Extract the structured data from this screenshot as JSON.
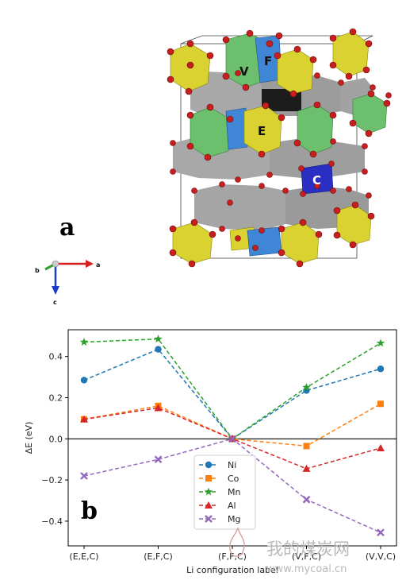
{
  "panel_a": {
    "letter": "a",
    "site_labels": {
      "V": "V",
      "F": "F",
      "E": "E",
      "C": "C"
    },
    "axes_labels": {
      "a": "a",
      "b": "b",
      "c": "c"
    },
    "colors": {
      "green": "#6cbf6c",
      "yellow": "#d9d230",
      "blue": "#3f86d6",
      "darkblue": "#2a2fc4",
      "grey": "#9a9a9a",
      "black": "#1c1c1c",
      "oxygen": "#c81e1e"
    }
  },
  "panel_b": {
    "letter": "b"
  },
  "watermark": {
    "text_cn": "我的煤炭网",
    "url": "www.mycoal.cn"
  },
  "chart_data": {
    "type": "line",
    "xlabel": "Li configuration label",
    "ylabel": "ΔE (eV)",
    "categories": [
      "(E,E,C)",
      "(E,F,C)",
      "(F,F,C)",
      "(V,F,C)",
      "(V,V,C)"
    ],
    "ylim": [
      -0.52,
      0.53
    ],
    "yticks": [
      "0.4",
      "0.2",
      "0.0",
      "−0.2",
      "−0.4"
    ],
    "ytick_values": [
      0.4,
      0.2,
      0.0,
      -0.2,
      -0.4
    ],
    "grid": false,
    "zero_line": true,
    "legend_position": "lower-center",
    "series": [
      {
        "name": "Ni",
        "color": "#1f77b4",
        "marker": "circle",
        "values": [
          0.285,
          0.435,
          0.0,
          0.235,
          0.34
        ]
      },
      {
        "name": "Co",
        "color": "#ff7f0e",
        "marker": "square",
        "values": [
          0.095,
          0.16,
          0.0,
          -0.035,
          0.17
        ]
      },
      {
        "name": "Mn",
        "color": "#2ca02c",
        "marker": "star",
        "values": [
          0.47,
          0.485,
          0.0,
          0.25,
          0.465
        ]
      },
      {
        "name": "Al",
        "color": "#d62728",
        "marker": "triangle",
        "values": [
          0.095,
          0.15,
          0.0,
          -0.145,
          -0.045
        ]
      },
      {
        "name": "Mg",
        "color": "#9467bd",
        "marker": "x",
        "values": [
          -0.18,
          -0.1,
          0.0,
          -0.295,
          -0.455
        ]
      }
    ]
  }
}
